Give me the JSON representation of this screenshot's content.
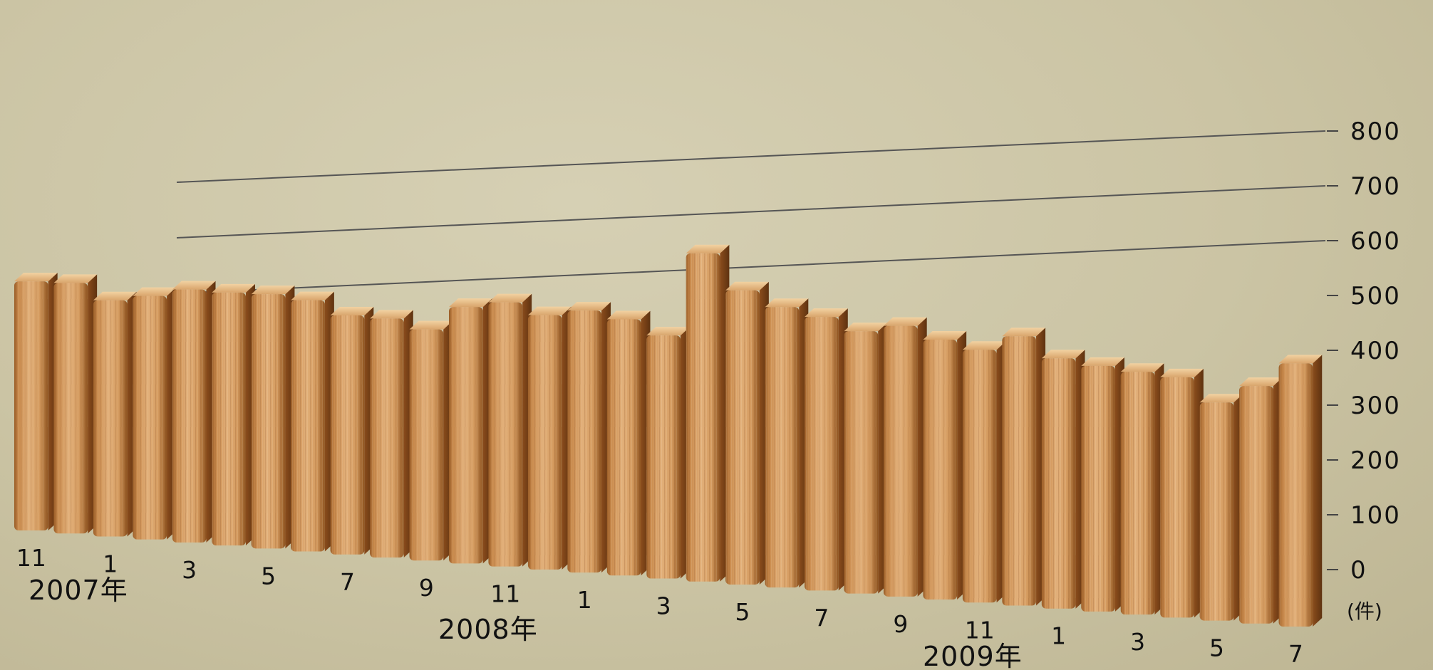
{
  "chart_data": {
    "type": "bar",
    "y_unit": "(件)",
    "ylim": [
      0,
      800
    ],
    "yticks": [
      0,
      100,
      200,
      300,
      400,
      500,
      600,
      700,
      800
    ],
    "grid": true,
    "categories": [
      "2007-11",
      "2007-12",
      "2008-01",
      "2008-02",
      "2008-03",
      "2008-04",
      "2008-05",
      "2008-06",
      "2008-07",
      "2008-08",
      "2008-09",
      "2008-10",
      "2008-11",
      "2008-12",
      "2009-01",
      "2009-02",
      "2009-03",
      "2009-04",
      "2009-05",
      "2009-06",
      "2009-07",
      "2009-08",
      "2009-09",
      "2009-10",
      "2009-11",
      "2009-12",
      "2010-01",
      "2010-02",
      "2010-03",
      "2010-04",
      "2010-05",
      "2010-06",
      "2010-07"
    ],
    "x_tick_labels": [
      "11",
      "",
      "1",
      "",
      "3",
      "",
      "5",
      "",
      "7",
      "",
      "9",
      "",
      "11",
      "",
      "1",
      "",
      "3",
      "",
      "5",
      "",
      "7",
      "",
      "9",
      "",
      "11",
      "",
      "1",
      "",
      "3",
      "",
      "5",
      "",
      "7"
    ],
    "year_labels": [
      "2007年",
      "2008年",
      "2009年"
    ],
    "values": [
      507,
      508,
      477,
      490,
      507,
      505,
      506,
      498,
      472,
      470,
      453,
      501,
      514,
      493,
      506,
      493,
      466,
      627,
      560,
      532,
      517,
      494,
      508,
      486,
      471,
      500,
      463,
      453,
      446,
      440,
      398,
      432,
      477
    ]
  }
}
